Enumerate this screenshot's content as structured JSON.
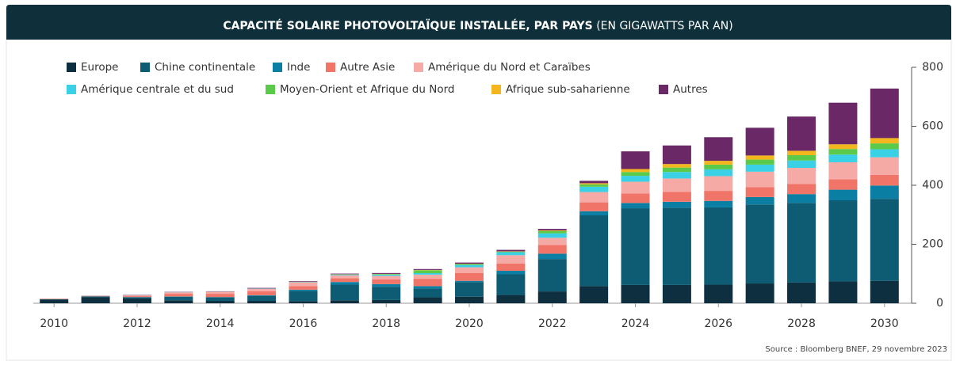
{
  "chart_data": {
    "type": "stacked_bar",
    "title": "CAPACITÉ SOLAIRE PHOTOVOLTAÏQUE INSTALLÉE, PAR PAYS",
    "subtitle": "(EN GIGAWATTS PAR AN)",
    "source": "Source : Bloomberg BNEF, 29 novembre 2023",
    "categories": [
      "2010",
      null,
      "2012",
      null,
      "2014",
      null,
      "2016",
      null,
      "2018",
      null,
      "2020",
      null,
      "2022",
      null,
      "2024",
      null,
      "2026",
      null,
      "2028",
      null,
      "2030"
    ],
    "ylim": [
      0,
      800
    ],
    "yticks": [
      0,
      200,
      400,
      600,
      800
    ],
    "y_axis_side": "right",
    "grid": false,
    "series": [
      {
        "name": "Europe",
        "color": "#0d2f3f",
        "values": [
          13,
          20,
          16,
          10,
          8,
          8,
          7,
          10,
          11,
          20,
          22,
          28,
          40,
          58,
          62,
          62,
          63,
          67,
          70,
          74,
          76
        ]
      },
      {
        "name": "Chine continentale",
        "color": "#0e5c73",
        "values": [
          1,
          3,
          4,
          12,
          12,
          17,
          35,
          53,
          45,
          30,
          50,
          70,
          110,
          240,
          260,
          262,
          262,
          268,
          270,
          275,
          278
        ]
      },
      {
        "name": "Inde",
        "color": "#0b7fa3",
        "values": [
          0,
          0.3,
          1,
          1,
          1,
          2,
          4,
          9,
          9,
          8,
          4,
          12,
          18,
          14,
          18,
          20,
          22,
          25,
          30,
          36,
          45
        ]
      },
      {
        "name": "Autre Asie",
        "color": "#f07468",
        "values": [
          1,
          1,
          3,
          9,
          11,
          14,
          12,
          13,
          16,
          25,
          26,
          25,
          30,
          30,
          32,
          34,
          34,
          34,
          34,
          35,
          36
        ]
      },
      {
        "name": "Amérique du Nord et Caraïbes",
        "color": "#f6aaa6",
        "values": [
          1,
          2,
          3,
          5,
          7,
          8,
          13,
          10,
          12,
          14,
          20,
          28,
          24,
          35,
          40,
          45,
          50,
          52,
          55,
          58,
          60
        ]
      },
      {
        "name": "Amérique centrale et du sud",
        "color": "#3ad0e6",
        "values": [
          0,
          0.5,
          0.5,
          0.5,
          0.5,
          1,
          1,
          2,
          4,
          5,
          8,
          10,
          15,
          18,
          20,
          22,
          23,
          24,
          25,
          26,
          27
        ]
      },
      {
        "name": "Moyen-Orient et Afrique du Nord",
        "color": "#5bc94a",
        "values": [
          0,
          0,
          0,
          0,
          0,
          0,
          0.5,
          1,
          2,
          10,
          3,
          2,
          8,
          8,
          13,
          15,
          16,
          17,
          18,
          19,
          20
        ]
      },
      {
        "name": "Afrique sub-saharienne",
        "color": "#f3b71d",
        "values": [
          0,
          0,
          0,
          0,
          0,
          0,
          0,
          0.5,
          0.5,
          1,
          1,
          1,
          2,
          4,
          10,
          12,
          13,
          14,
          15,
          16,
          18
        ]
      },
      {
        "name": "Autres",
        "color": "#6b2867",
        "values": [
          0,
          0,
          1,
          1,
          1,
          2,
          2,
          2,
          3,
          3,
          4,
          5,
          5,
          8,
          60,
          63,
          80,
          94,
          116,
          141,
          168
        ]
      }
    ]
  }
}
